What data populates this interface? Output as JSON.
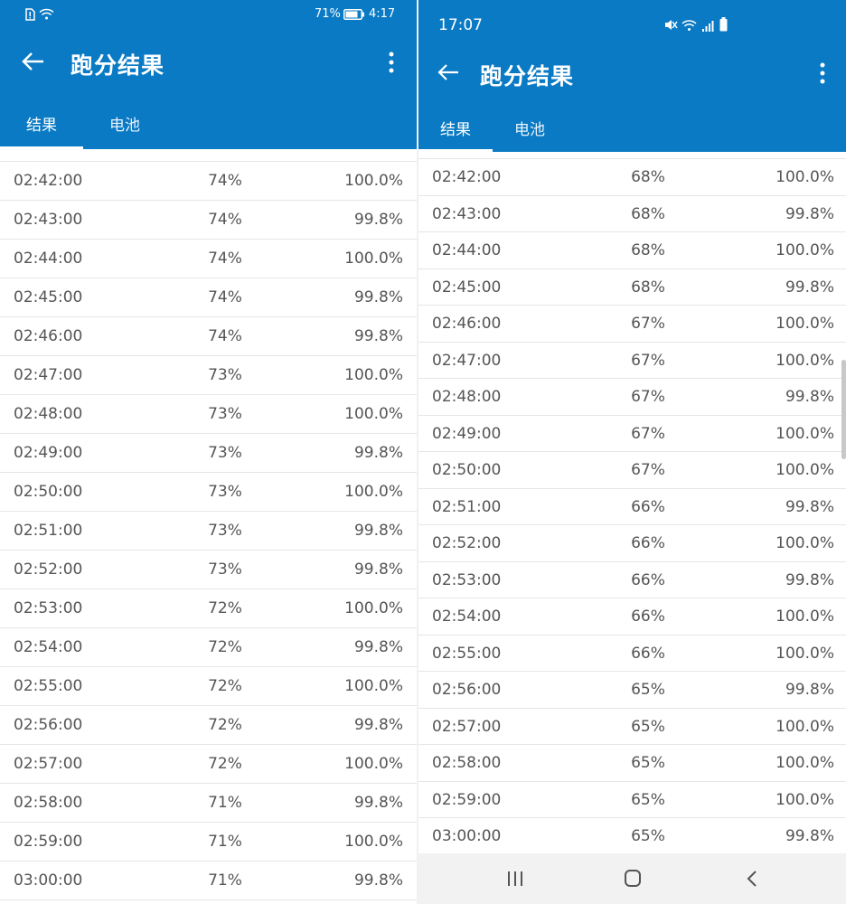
{
  "left_screen": {
    "status": {
      "battery_percent": "71%",
      "time": "4:17"
    },
    "app_bar": {
      "title": "跑分结果"
    },
    "tabs": [
      {
        "label": "结果",
        "active": true
      },
      {
        "label": "电池",
        "active": false
      }
    ],
    "rows": [
      {
        "time": "02:42:00",
        "battery": "74%",
        "score": "100.0%"
      },
      {
        "time": "02:43:00",
        "battery": "74%",
        "score": "99.8%"
      },
      {
        "time": "02:44:00",
        "battery": "74%",
        "score": "100.0%"
      },
      {
        "time": "02:45:00",
        "battery": "74%",
        "score": "99.8%"
      },
      {
        "time": "02:46:00",
        "battery": "74%",
        "score": "99.8%"
      },
      {
        "time": "02:47:00",
        "battery": "73%",
        "score": "100.0%"
      },
      {
        "time": "02:48:00",
        "battery": "73%",
        "score": "100.0%"
      },
      {
        "time": "02:49:00",
        "battery": "73%",
        "score": "99.8%"
      },
      {
        "time": "02:50:00",
        "battery": "73%",
        "score": "100.0%"
      },
      {
        "time": "02:51:00",
        "battery": "73%",
        "score": "99.8%"
      },
      {
        "time": "02:52:00",
        "battery": "73%",
        "score": "99.8%"
      },
      {
        "time": "02:53:00",
        "battery": "72%",
        "score": "100.0%"
      },
      {
        "time": "02:54:00",
        "battery": "72%",
        "score": "99.8%"
      },
      {
        "time": "02:55:00",
        "battery": "72%",
        "score": "100.0%"
      },
      {
        "time": "02:56:00",
        "battery": "72%",
        "score": "99.8%"
      },
      {
        "time": "02:57:00",
        "battery": "72%",
        "score": "100.0%"
      },
      {
        "time": "02:58:00",
        "battery": "71%",
        "score": "99.8%"
      },
      {
        "time": "02:59:00",
        "battery": "71%",
        "score": "100.0%"
      },
      {
        "time": "03:00:00",
        "battery": "71%",
        "score": "99.8%"
      }
    ]
  },
  "right_screen": {
    "status": {
      "time": "17:07"
    },
    "app_bar": {
      "title": "跑分结果"
    },
    "tabs": [
      {
        "label": "结果",
        "active": true
      },
      {
        "label": "电池",
        "active": false
      }
    ],
    "rows": [
      {
        "time": "02:42:00",
        "battery": "68%",
        "score": "100.0%"
      },
      {
        "time": "02:43:00",
        "battery": "68%",
        "score": "99.8%"
      },
      {
        "time": "02:44:00",
        "battery": "68%",
        "score": "100.0%"
      },
      {
        "time": "02:45:00",
        "battery": "68%",
        "score": "99.8%"
      },
      {
        "time": "02:46:00",
        "battery": "67%",
        "score": "100.0%"
      },
      {
        "time": "02:47:00",
        "battery": "67%",
        "score": "100.0%"
      },
      {
        "time": "02:48:00",
        "battery": "67%",
        "score": "99.8%"
      },
      {
        "time": "02:49:00",
        "battery": "67%",
        "score": "100.0%"
      },
      {
        "time": "02:50:00",
        "battery": "67%",
        "score": "100.0%"
      },
      {
        "time": "02:51:00",
        "battery": "66%",
        "score": "99.8%"
      },
      {
        "time": "02:52:00",
        "battery": "66%",
        "score": "100.0%"
      },
      {
        "time": "02:53:00",
        "battery": "66%",
        "score": "99.8%"
      },
      {
        "time": "02:54:00",
        "battery": "66%",
        "score": "100.0%"
      },
      {
        "time": "02:55:00",
        "battery": "66%",
        "score": "100.0%"
      },
      {
        "time": "02:56:00",
        "battery": "65%",
        "score": "99.8%"
      },
      {
        "time": "02:57:00",
        "battery": "65%",
        "score": "100.0%"
      },
      {
        "time": "02:58:00",
        "battery": "65%",
        "score": "100.0%"
      },
      {
        "time": "02:59:00",
        "battery": "65%",
        "score": "100.0%"
      },
      {
        "time": "03:00:00",
        "battery": "65%",
        "score": "99.8%"
      }
    ]
  },
  "colors": {
    "app_bar": "#0a7ac4",
    "row_text": "#555555",
    "divider": "#e6e6e6",
    "nav_bar": "#f2f2f2"
  },
  "icons": {
    "back": "arrow-left-icon",
    "more": "more-vertical-icon",
    "status_left": [
      "sim-alert-icon",
      "wifi-icon",
      "battery-icon"
    ],
    "status_right": [
      "mute-icon",
      "wifi-icon",
      "signal-icon",
      "battery-icon"
    ],
    "nav": [
      "recents-icon",
      "home-icon",
      "back-nav-icon"
    ]
  }
}
